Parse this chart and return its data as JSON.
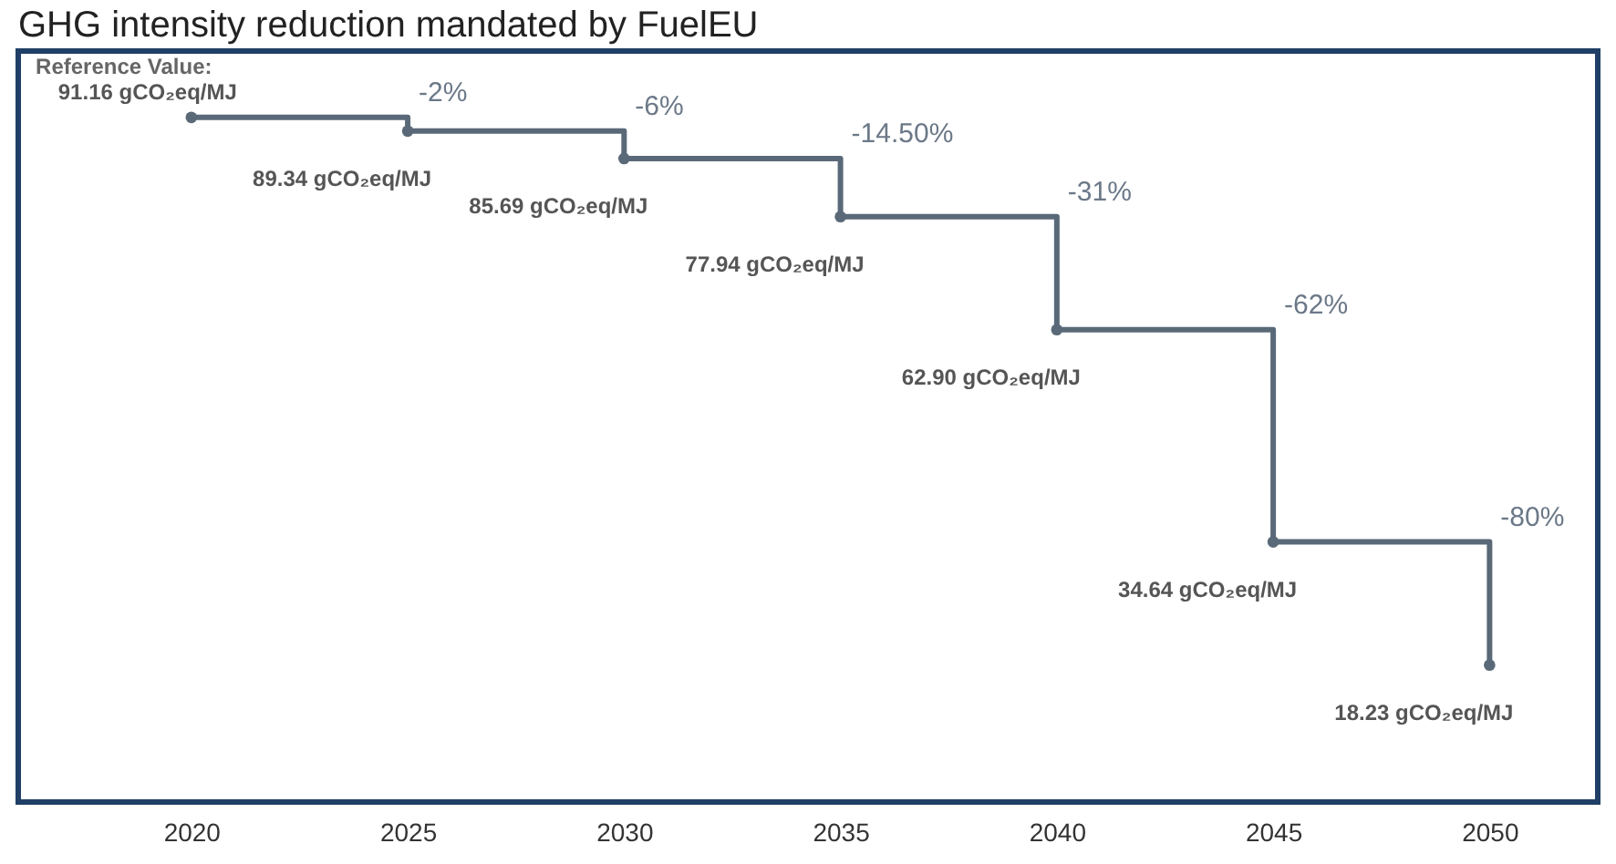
{
  "chart_data": {
    "type": "step",
    "title": "GHG intensity reduction mandated by FuelEU",
    "x": [
      2020,
      2025,
      2030,
      2035,
      2040,
      2045,
      2050
    ],
    "series": [
      {
        "color": "#5a6978",
        "values": [
          91.16,
          89.34,
          85.69,
          77.94,
          62.9,
          34.64,
          18.23
        ],
        "value_labels": [
          "91.16 gCO₂eq/MJ",
          "89.34 gCO₂eq/MJ",
          "85.69 gCO₂eq/MJ",
          "77.94 gCO₂eq/MJ",
          "62.90 gCO₂eq/MJ",
          "34.64 gCO₂eq/MJ",
          "18.23 gCO₂eq/MJ"
        ]
      }
    ],
    "annotations": [
      {
        "text": "Reference Value:",
        "x": 2020,
        "y": 91.16
      },
      {
        "text": "-2%",
        "x": 2025,
        "y": 91.16
      },
      {
        "text": "-6%",
        "x": 2030,
        "y": 89.34
      },
      {
        "text": "-14.50%",
        "x": 2035,
        "y": 85.69
      },
      {
        "text": "-31%",
        "x": 2040,
        "y": 77.94
      },
      {
        "text": "-62%",
        "x": 2045,
        "y": 62.9
      },
      {
        "text": "-80%",
        "x": 2050,
        "y": 34.64
      }
    ],
    "xlim": [
      2016,
      2052.5
    ],
    "xticks": [
      2020,
      2025,
      2030,
      2035,
      2040,
      2045,
      2050
    ],
    "ylim": [
      0,
      100
    ],
    "tick_labels": "x",
    "marker": "circle",
    "line_style": "solid"
  }
}
